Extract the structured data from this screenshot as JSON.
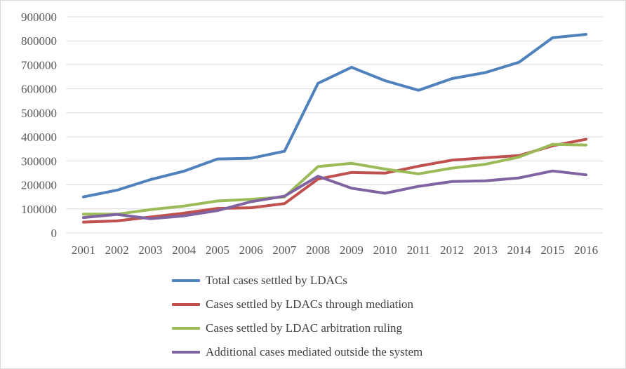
{
  "chart_data": {
    "type": "line",
    "x": [
      "2001",
      "2002",
      "2003",
      "2004",
      "2005",
      "2006",
      "2007",
      "2008",
      "2009",
      "2010",
      "2011",
      "2012",
      "2013",
      "2014",
      "2015",
      "2016"
    ],
    "ylim": [
      0,
      900000
    ],
    "yticks": [
      "0",
      "100000",
      "200000",
      "300000",
      "400000",
      "500000",
      "600000",
      "700000",
      "800000",
      "900000"
    ],
    "grid": true,
    "legend_position": "bottom",
    "series": [
      {
        "name": "Total cases settled by LDACs",
        "color": "#4f81bd",
        "values": [
          150000,
          178000,
          222000,
          257000,
          308000,
          311000,
          340000,
          623000,
          690000,
          634000,
          594000,
          643000,
          668000,
          711000,
          813000,
          827000
        ]
      },
      {
        "name": "Cases settled by LDACs through mediation",
        "color": "#c0504d",
        "values": [
          45000,
          50000,
          66000,
          82000,
          102000,
          105000,
          122000,
          224000,
          252000,
          249000,
          278000,
          303000,
          313000,
          322000,
          363000,
          390000
        ]
      },
      {
        "name": "Cases settled by LDAC arbitration ruling",
        "color": "#9bbb59",
        "values": [
          78000,
          78000,
          97000,
          112000,
          133000,
          140000,
          150000,
          276000,
          290000,
          266000,
          246000,
          270000,
          286000,
          316000,
          369000,
          366000
        ]
      },
      {
        "name": "Additional cases mediated outside the system",
        "color": "#8064a2",
        "values": [
          64000,
          77000,
          59000,
          71000,
          93000,
          130000,
          153000,
          236000,
          186000,
          165000,
          194000,
          214000,
          217000,
          229000,
          258000,
          242000
        ]
      }
    ]
  }
}
